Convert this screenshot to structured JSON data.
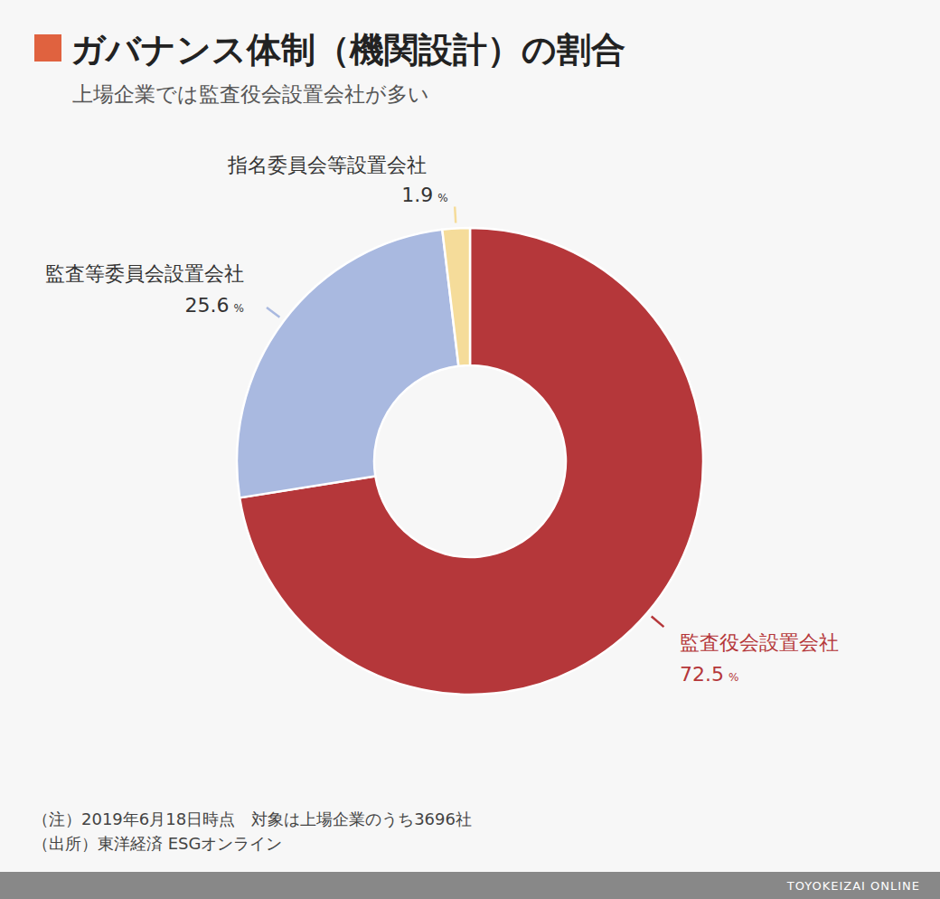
{
  "chart_data": {
    "type": "pie",
    "title": "ガバナンス体制（機関設計）の割合",
    "subtitle": "上場企業では監査役会設置会社が多い",
    "categories": [
      "監査役会設置会社",
      "監査等委員会設置会社",
      "指名委員会等設置会社"
    ],
    "values": [
      72.5,
      25.6,
      1.9
    ],
    "value_labels": [
      "72.5 %",
      "25.6 %",
      "1.9 %"
    ],
    "colors": [
      "#b5373a",
      "#a9b9e0",
      "#f5dc9a"
    ],
    "data_labels": true,
    "notes": [
      "（注）2019年6月18日時点　対象は上場企業のうち3696社",
      "（出所）東洋経済 ESGオンライン"
    ],
    "footer": "TOYOKEIZAI ONLINE"
  }
}
